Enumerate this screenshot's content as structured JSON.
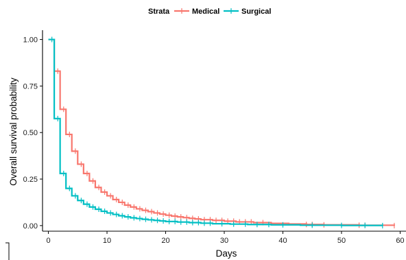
{
  "chart_data": {
    "type": "line",
    "subtype": "kaplan-meier step",
    "xlabel": "Days",
    "ylabel": "Overall survival probability",
    "xlim": [
      -1,
      61
    ],
    "ylim": [
      -0.03,
      1.05
    ],
    "x_ticks": [
      0,
      10,
      20,
      30,
      40,
      50,
      60
    ],
    "y_ticks": [
      0,
      0.25,
      0.5,
      0.75,
      1
    ],
    "x_tick_labels": [
      "0",
      "10",
      "20",
      "30",
      "40",
      "50",
      "60"
    ],
    "y_tick_labels": [
      "0.00",
      "0.25",
      "0.50",
      "0.75",
      "1.00"
    ],
    "grid": false,
    "legend": {
      "title": "Strata",
      "placement": "top"
    },
    "series": [
      {
        "name": "Medical",
        "color": "#F8766D",
        "x": [
          0,
          1,
          2,
          3,
          4,
          5,
          6,
          7,
          8,
          9,
          10,
          11,
          12,
          13,
          14,
          15,
          16,
          17,
          18,
          19,
          20,
          21,
          22,
          23,
          24,
          25,
          26,
          28,
          30,
          32,
          35,
          38,
          41,
          44,
          47,
          53,
          59
        ],
        "y": [
          1.0,
          0.83,
          0.625,
          0.49,
          0.4,
          0.33,
          0.28,
          0.24,
          0.205,
          0.18,
          0.16,
          0.14,
          0.125,
          0.11,
          0.1,
          0.09,
          0.082,
          0.075,
          0.068,
          0.062,
          0.056,
          0.051,
          0.047,
          0.043,
          0.039,
          0.036,
          0.032,
          0.028,
          0.024,
          0.02,
          0.016,
          0.012,
          0.009,
          0.006,
          0.004,
          0.002,
          0.0
        ],
        "censored_x": [
          1.6,
          2.6,
          3.6,
          4.6,
          5.6,
          6.6,
          7.6,
          8.6,
          9.6,
          10.6,
          11.6,
          12.6,
          13.6,
          14.6,
          15.6,
          16.6,
          17.6,
          18.6,
          19.6,
          20.6,
          21.6,
          22.6,
          23.6,
          24.6,
          25.6,
          26.6,
          27.6,
          28.6,
          29.6,
          30.6,
          31.6,
          32.6,
          33.6,
          34.6,
          36.6,
          44,
          45,
          47,
          53,
          54,
          59
        ]
      },
      {
        "name": "Surgical",
        "color": "#00BFC4",
        "x": [
          0,
          1,
          2,
          3,
          4,
          5,
          6,
          7,
          8,
          9,
          10,
          11,
          12,
          13,
          14,
          15,
          16,
          17,
          18,
          19,
          20,
          22,
          24,
          26,
          28,
          31,
          34,
          38,
          43,
          50,
          57
        ],
        "y": [
          1.0,
          0.575,
          0.28,
          0.2,
          0.16,
          0.135,
          0.115,
          0.1,
          0.088,
          0.077,
          0.068,
          0.06,
          0.053,
          0.047,
          0.042,
          0.038,
          0.034,
          0.031,
          0.028,
          0.025,
          0.022,
          0.019,
          0.016,
          0.013,
          0.01,
          0.008,
          0.006,
          0.004,
          0.002,
          0.001,
          0.0
        ],
        "censored_x": [
          0.6,
          1.6,
          2.6,
          3.6,
          4.6,
          5.6,
          6.6,
          7.6,
          8.6,
          9.6,
          10.6,
          11.6,
          12.6,
          13.6,
          14.6,
          15.6,
          16.6,
          17.6,
          18.6,
          19.6,
          20.6,
          21.6,
          22.6,
          23.6,
          24.6,
          25.6,
          26.6,
          27.6,
          29.6,
          31.6,
          33.6,
          35.6,
          37.6,
          40,
          45,
          50,
          54,
          57
        ]
      }
    ]
  }
}
